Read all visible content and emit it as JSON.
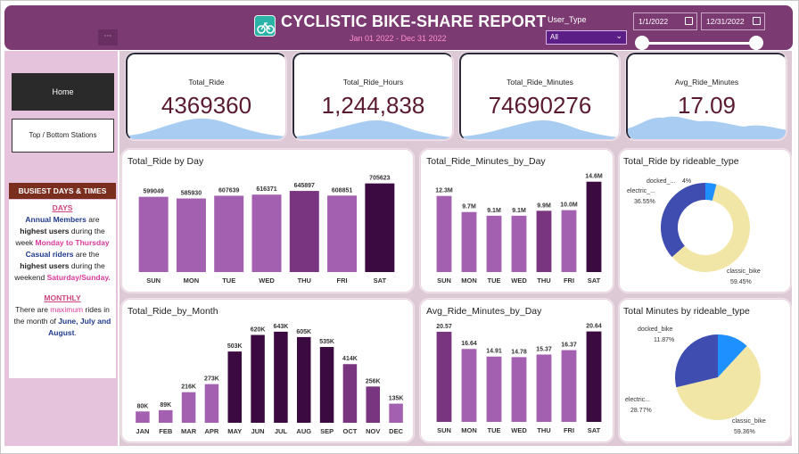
{
  "header": {
    "title": "CYCLISTIC BIKE-SHARE REPORT",
    "subtitle": "Jan 01 2022 - Dec 31 2022",
    "user_type_label": "User_Type",
    "user_type_value": "All",
    "date_start": "1/1/2022",
    "date_end": "12/31/2022",
    "more_label": "···"
  },
  "sidebar": {
    "home_label": "Home",
    "top_bottom_label": "Top / Bottom Stations",
    "busiest_title": "BUSIEST DAYS & TIMES",
    "days_heading": "DAYS",
    "line1a": "Annual Members",
    "line1b": " are ",
    "line1c": "highest users",
    "line1d": " during the week ",
    "line1e": "Monday to Thursday",
    "line2a": "Casual riders",
    "line2b": " are the ",
    "line2c": "highest users",
    "line2d": " during the weekend ",
    "line2e": "Saturday/Sunday.",
    "monthly_heading": "MONTHLY",
    "line3a": "There are ",
    "line3b": "maximum",
    "line3c": " rides in the month of ",
    "line3d": "June, July and August",
    "line3e": "."
  },
  "kpis": [
    {
      "label": "Total_Ride",
      "value": "4369360"
    },
    {
      "label": "Total_Ride_Hours",
      "value": "1,244,838"
    },
    {
      "label": "Total_Ride_Minutes",
      "value": "74690276"
    },
    {
      "label": "Avg_Ride_Minutes",
      "value": "17.09"
    }
  ],
  "colors": {
    "bar_light": "#a35fb0",
    "bar_mid": "#7a3580",
    "bar_dark": "#3b0a40",
    "classic": "#f2e6a6",
    "electric": "#3f4db0",
    "docked": "#1e90ff",
    "kpi_area": "#a9cdf2"
  },
  "chart_data": [
    {
      "type": "bar",
      "title": "Total_Ride by Day",
      "categories": [
        "SUN",
        "MON",
        "TUE",
        "WED",
        "THU",
        "FRI",
        "SAT"
      ],
      "values": [
        599049,
        585930,
        607639,
        616371,
        645897,
        608851,
        705623
      ],
      "labels": [
        "599049",
        "585930",
        "607639",
        "616371",
        "645897",
        "608851",
        "705623"
      ],
      "ylim": [
        0,
        760000
      ]
    },
    {
      "type": "bar",
      "title": "Total_Ride_Minutes_by_Day",
      "categories": [
        "SUN",
        "MON",
        "TUE",
        "WED",
        "THU",
        "FRI",
        "SAT"
      ],
      "values": [
        12.3,
        9.7,
        9.1,
        9.1,
        9.9,
        10.0,
        14.6
      ],
      "labels": [
        "12.3M",
        "9.7M",
        "9.1M",
        "9.1M",
        "9.9M",
        "10.0M",
        "14.6M"
      ],
      "ylim": [
        0,
        16
      ]
    },
    {
      "type": "pie",
      "title": "Total_Ride by rideable_type",
      "donut": true,
      "categories": [
        "classic_bike",
        "electric_...",
        "docked_..."
      ],
      "values": [
        59.45,
        36.55,
        4.0
      ],
      "labels": [
        "classic_bike",
        "59.45%",
        "electric_...",
        "36.55%",
        "docked_...",
        "4%"
      ]
    },
    {
      "type": "bar",
      "title": "Total_Ride_by_Month",
      "categories": [
        "JAN",
        "FEB",
        "MAR",
        "APR",
        "MAY",
        "JUN",
        "JUL",
        "AUG",
        "SEP",
        "OCT",
        "NOV",
        "DEC"
      ],
      "values": [
        80,
        89,
        216,
        273,
        503,
        620,
        643,
        605,
        535,
        414,
        256,
        135
      ],
      "labels": [
        "80K",
        "89K",
        "216K",
        "273K",
        "503K",
        "620K",
        "643K",
        "605K",
        "535K",
        "414K",
        "256K",
        "135K"
      ],
      "ylim": [
        0,
        680
      ]
    },
    {
      "type": "bar",
      "title": "Avg_Ride_Minutes_by_Day",
      "categories": [
        "SUN",
        "MON",
        "TUE",
        "WED",
        "THU",
        "FRI",
        "SAT"
      ],
      "values": [
        20.57,
        16.64,
        14.91,
        14.78,
        15.37,
        16.37,
        20.64
      ],
      "labels": [
        "20.57",
        "16.64",
        "14.91",
        "14.78",
        "15.37",
        "16.37",
        "20.64"
      ],
      "ylim": [
        0,
        23
      ]
    },
    {
      "type": "pie",
      "title": "Total Minutes by rideable_type",
      "donut": false,
      "categories": [
        "classic_bike",
        "electric...",
        "docked_bike"
      ],
      "values": [
        59.36,
        28.77,
        11.87
      ],
      "labels": [
        "classic_bike",
        "59.36%",
        "electric...",
        "28.77%",
        "docked_bike",
        "11.87%"
      ]
    }
  ]
}
